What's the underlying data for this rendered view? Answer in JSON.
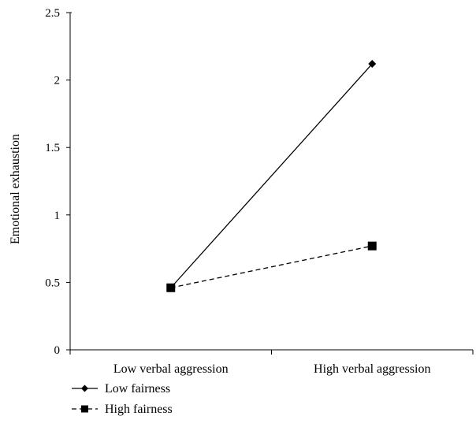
{
  "chart_data": {
    "type": "line",
    "categories": [
      "Low verbal aggression",
      "High verbal aggression"
    ],
    "series": [
      {
        "name": "Low fairness",
        "values": [
          0.46,
          2.12
        ],
        "marker": "diamond",
        "line_style": "solid",
        "color": "#000000"
      },
      {
        "name": "High fairness",
        "values": [
          0.46,
          0.77
        ],
        "marker": "square",
        "line_style": "dashed",
        "color": "#000000"
      }
    ],
    "title": "",
    "xlabel": "",
    "ylabel": "Emotional exhaustion",
    "ylim": [
      0,
      2.5
    ],
    "yticks": [
      "0",
      "0.5",
      "1",
      "1.5",
      "2",
      "2.5"
    ],
    "grid": false,
    "legend_position": "bottom-left"
  }
}
